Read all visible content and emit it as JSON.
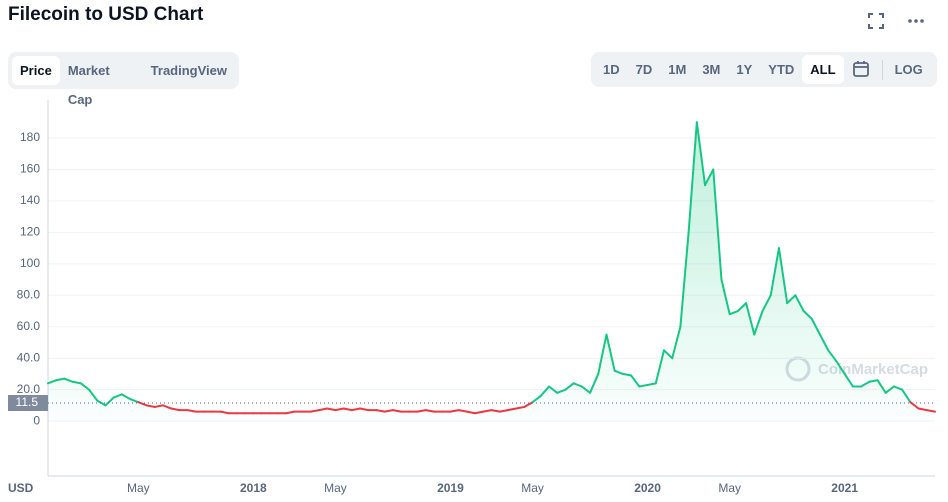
{
  "header": {
    "title": "Filecoin to USD Chart"
  },
  "tabs": [
    "Price",
    "Market Cap",
    "TradingView"
  ],
  "ranges": [
    "1D",
    "7D",
    "1M",
    "3M",
    "1Y",
    "YTD",
    "ALL"
  ],
  "log_button": "LOG",
  "watermark": "CoinMarketCap",
  "chart_data": {
    "type": "line",
    "currency_label": "USD",
    "categories": [
      null,
      null,
      null,
      null,
      null,
      null,
      null,
      null,
      null,
      null,
      null,
      "May",
      null,
      null,
      null,
      null,
      null,
      null,
      null,
      null,
      null,
      null,
      null,
      null,
      null,
      "2018",
      null,
      null,
      null,
      null,
      null,
      null,
      null,
      null,
      null,
      "May",
      null,
      null,
      null,
      null,
      null,
      null,
      null,
      null,
      null,
      null,
      null,
      null,
      null,
      "2019",
      null,
      null,
      null,
      null,
      null,
      null,
      null,
      null,
      null,
      "May",
      null,
      null,
      null,
      null,
      null,
      null,
      null,
      null,
      null,
      null,
      null,
      null,
      null,
      "2020",
      null,
      null,
      null,
      null,
      null,
      null,
      null,
      null,
      null,
      "May",
      null,
      null,
      null,
      null,
      null,
      null,
      null,
      null,
      null,
      null,
      null,
      null,
      null,
      "2021",
      null,
      null,
      null,
      null,
      null,
      null,
      null,
      null,
      null,
      null,
      null
    ],
    "values": [
      24,
      26,
      27,
      25,
      24,
      20,
      13,
      10,
      15,
      17,
      14,
      12,
      10,
      9,
      10,
      8,
      7,
      7,
      6,
      6,
      6,
      6,
      5,
      5,
      5,
      5,
      5,
      5,
      5,
      5,
      6,
      6,
      6,
      7,
      8,
      7,
      8,
      7,
      8,
      7,
      7,
      6,
      7,
      6,
      6,
      6,
      7,
      6,
      6,
      6,
      7,
      6,
      5,
      6,
      7,
      6,
      7,
      8,
      9,
      12,
      16,
      22,
      18,
      20,
      24,
      22,
      18,
      30,
      55,
      32,
      30,
      29,
      22,
      23,
      24,
      45,
      40,
      60,
      120,
      190,
      150,
      160,
      90,
      68,
      70,
      75,
      55,
      70,
      80,
      110,
      75,
      80,
      70,
      65,
      55,
      45,
      38,
      30,
      22,
      22,
      25,
      26,
      18,
      22,
      20,
      12,
      8,
      7,
      6
    ],
    "reference": 11.5,
    "up_color": "#16c784",
    "down_color": "#ea3943",
    "ylim": [
      -33,
      198
    ],
    "yticks": [
      0,
      {
        "value": 20,
        "label": "20.0"
      },
      {
        "value": 40,
        "label": "40.0"
      },
      {
        "value": 60,
        "label": "60.0"
      },
      {
        "value": 80,
        "label": "80.0"
      },
      100,
      120,
      140,
      160,
      180
    ],
    "grid": true
  }
}
